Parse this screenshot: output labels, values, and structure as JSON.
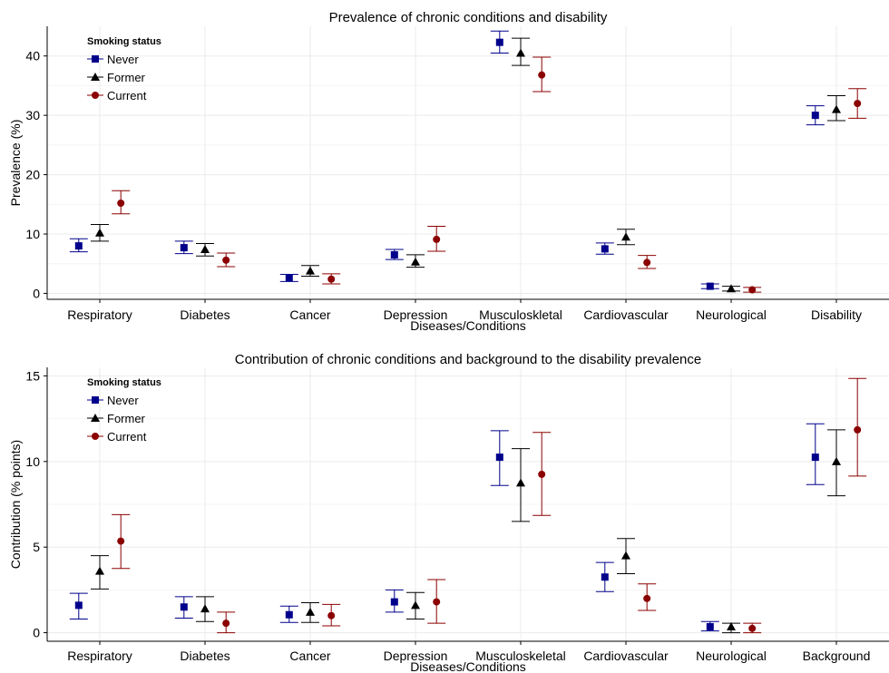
{
  "chart_data": [
    {
      "type": "scatter",
      "title": "Prevalence of chronic conditions and disability",
      "xlabel": "Diseases/Conditions",
      "ylabel": "Prevalence (%)",
      "ylim": [
        -1,
        45
      ],
      "yticks": [
        0,
        10,
        20,
        30,
        40
      ],
      "grid": true,
      "legend_title": "Smoking status",
      "legend_position": "top-left",
      "categories": [
        "Respiratory",
        "Diabetes",
        "Cancer",
        "Depression",
        "Musculoskletal",
        "Cardiovascular",
        "Neurological",
        "Disability"
      ],
      "series": [
        {
          "name": "Never",
          "color": "#00008B",
          "marker": "square",
          "values": [
            8.0,
            7.7,
            2.6,
            6.5,
            42.3,
            7.5,
            1.2,
            30.0
          ],
          "lower": [
            7.0,
            6.7,
            2.0,
            5.7,
            40.5,
            6.6,
            0.8,
            28.4
          ],
          "upper": [
            9.2,
            8.8,
            3.2,
            7.4,
            44.2,
            8.5,
            1.6,
            31.6
          ]
        },
        {
          "name": "Former",
          "color": "#000000",
          "marker": "triangle",
          "values": [
            10.2,
            7.4,
            3.8,
            5.3,
            40.5,
            9.5,
            0.8,
            31.0
          ],
          "lower": [
            8.8,
            6.3,
            2.9,
            4.4,
            38.4,
            8.2,
            0.4,
            29.1
          ],
          "upper": [
            11.6,
            8.4,
            4.7,
            6.5,
            43.0,
            10.8,
            1.2,
            33.3
          ]
        },
        {
          "name": "Current",
          "color": "#8B0000",
          "marker": "circle",
          "values": [
            15.2,
            5.6,
            2.4,
            9.1,
            36.8,
            5.2,
            0.6,
            32.0
          ],
          "lower": [
            13.4,
            4.5,
            1.6,
            7.1,
            34.0,
            4.2,
            0.2,
            29.5
          ],
          "upper": [
            17.3,
            6.8,
            3.3,
            11.3,
            39.8,
            6.4,
            1.0,
            34.5
          ]
        }
      ]
    },
    {
      "type": "scatter",
      "title": "Contribution of chronic conditions and background to the disability prevalence",
      "xlabel": "Diseases/Conditions",
      "ylabel": "Contribution (% points)",
      "ylim": [
        -0.5,
        15.5
      ],
      "yticks": [
        0,
        5,
        10,
        15
      ],
      "grid": true,
      "legend_title": "Smoking status",
      "legend_position": "top-left",
      "categories": [
        "Respiratory",
        "Diabetes",
        "Cancer",
        "Depression",
        "Musculoskeletal",
        "Cardiovascular",
        "Neurological",
        "Background"
      ],
      "series": [
        {
          "name": "Never",
          "color": "#00008B",
          "marker": "square",
          "values": [
            1.6,
            1.5,
            1.05,
            1.8,
            10.25,
            3.25,
            0.35,
            10.25
          ],
          "lower": [
            0.8,
            0.85,
            0.6,
            1.2,
            8.6,
            2.4,
            0.1,
            8.65
          ],
          "upper": [
            2.3,
            2.1,
            1.55,
            2.5,
            11.8,
            4.1,
            0.65,
            12.2
          ]
        },
        {
          "name": "Former",
          "color": "#000000",
          "marker": "triangle",
          "values": [
            3.6,
            1.4,
            1.2,
            1.6,
            8.75,
            4.5,
            0.35,
            10.0
          ],
          "lower": [
            2.55,
            0.65,
            0.6,
            0.8,
            6.5,
            3.45,
            0.0,
            8.0
          ],
          "upper": [
            4.5,
            2.1,
            1.75,
            2.35,
            10.75,
            5.5,
            0.55,
            11.85
          ]
        },
        {
          "name": "Current",
          "color": "#8B0000",
          "marker": "circle",
          "values": [
            5.35,
            0.55,
            1.0,
            1.8,
            9.25,
            2.0,
            0.25,
            11.85
          ],
          "lower": [
            3.75,
            0.0,
            0.4,
            0.55,
            6.85,
            1.3,
            0.0,
            9.15
          ],
          "upper": [
            6.9,
            1.2,
            1.65,
            3.1,
            11.7,
            2.85,
            0.55,
            14.85
          ]
        }
      ]
    }
  ]
}
